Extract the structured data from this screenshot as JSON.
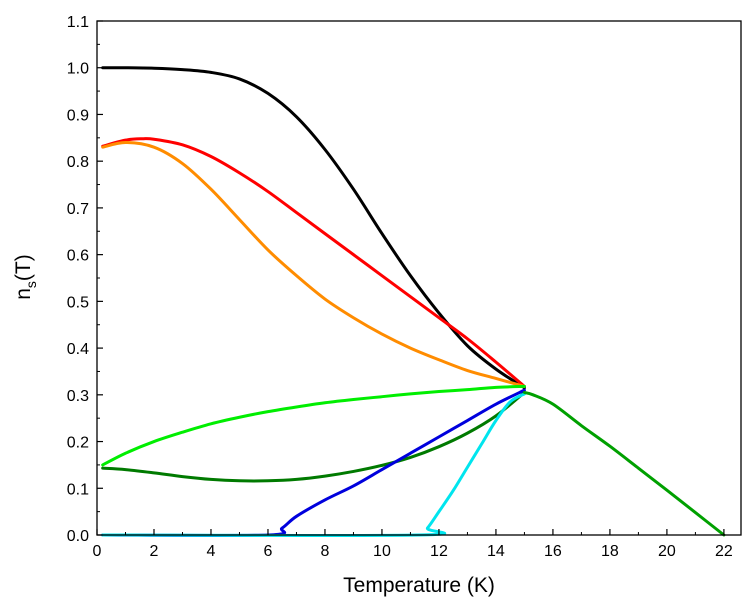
{
  "chart_data": {
    "type": "line",
    "title": "",
    "xlabel": "Temperature  (K)",
    "ylabel": {
      "base": "n",
      "subscript": "s",
      "suffix": "(T)"
    },
    "xlim": [
      0,
      22.6
    ],
    "ylim": [
      0,
      1.1
    ],
    "xticks": [
      0,
      2,
      4,
      6,
      8,
      10,
      12,
      14,
      16,
      18,
      20,
      22
    ],
    "yticks": [
      0.0,
      0.1,
      0.2,
      0.3,
      0.4,
      0.5,
      0.6,
      0.7,
      0.8,
      0.9,
      1.0,
      1.1
    ],
    "yticks_labels": [
      "0.0",
      "0.1",
      "0.2",
      "0.3",
      "0.4",
      "0.5",
      "0.6",
      "0.7",
      "0.8",
      "0.9",
      "1.0",
      "1.1"
    ],
    "xticks_labels": [
      "0",
      "2",
      "4",
      "6",
      "8",
      "10",
      "12",
      "14",
      "16",
      "18",
      "20",
      "22"
    ],
    "legend": "none",
    "grid": false,
    "series": [
      {
        "color": "#000000",
        "x": [
          0.2,
          1,
          2,
          3,
          4,
          5,
          6,
          7,
          8,
          9,
          10,
          11,
          12,
          13,
          14,
          15
        ],
        "y": [
          1.0,
          1.0,
          0.999,
          0.996,
          0.99,
          0.976,
          0.945,
          0.895,
          0.825,
          0.74,
          0.645,
          0.555,
          0.475,
          0.405,
          0.355,
          0.315
        ]
      },
      {
        "color": "#ff0000",
        "x": [
          0.2,
          1,
          1.6,
          2,
          3,
          4,
          5,
          6,
          7,
          8,
          9,
          10,
          11,
          12,
          13,
          14,
          15
        ],
        "y": [
          0.832,
          0.845,
          0.848,
          0.847,
          0.835,
          0.81,
          0.775,
          0.735,
          0.69,
          0.645,
          0.6,
          0.555,
          0.51,
          0.465,
          0.42,
          0.37,
          0.318
        ]
      },
      {
        "color": "#ff8c00",
        "x": [
          0.2,
          1,
          2,
          3,
          4,
          5,
          6,
          7,
          8,
          9,
          10,
          11,
          12,
          13,
          14,
          15
        ],
        "y": [
          0.83,
          0.84,
          0.83,
          0.795,
          0.74,
          0.675,
          0.61,
          0.555,
          0.505,
          0.465,
          0.43,
          0.4,
          0.375,
          0.352,
          0.335,
          0.318
        ]
      },
      {
        "color": "#00ee00",
        "x": [
          0.2,
          1,
          2,
          3,
          4,
          5,
          6,
          7,
          8,
          9,
          10,
          11,
          12,
          13,
          14,
          15
        ],
        "y": [
          0.15,
          0.175,
          0.2,
          0.22,
          0.238,
          0.252,
          0.264,
          0.274,
          0.283,
          0.29,
          0.296,
          0.302,
          0.307,
          0.311,
          0.316,
          0.318
        ]
      },
      {
        "color": "#007a00",
        "x": [
          0.2,
          1,
          2,
          3,
          4,
          5,
          6,
          7,
          8,
          9,
          10,
          11,
          12,
          13,
          14,
          15
        ],
        "y": [
          0.143,
          0.14,
          0.133,
          0.125,
          0.119,
          0.116,
          0.116,
          0.119,
          0.126,
          0.136,
          0.149,
          0.166,
          0.189,
          0.218,
          0.255,
          0.305
        ]
      },
      {
        "color": "#0000dd",
        "x": [
          0.2,
          6.0,
          6.5,
          7,
          8,
          9,
          10,
          11,
          12,
          13,
          14,
          15
        ],
        "y": [
          0.0,
          0.0,
          0.015,
          0.04,
          0.075,
          0.105,
          0.14,
          0.175,
          0.21,
          0.245,
          0.28,
          0.31
        ]
      },
      {
        "color": "#00e5ee",
        "x": [
          0.2,
          11.3,
          11.6,
          12,
          12.5,
          13,
          13.5,
          14,
          14.5,
          15
        ],
        "y": [
          0.0,
          0.0,
          0.015,
          0.05,
          0.095,
          0.145,
          0.195,
          0.245,
          0.285,
          0.302
        ]
      },
      {
        "color": "#00a000",
        "x": [
          15,
          15.3,
          16,
          17,
          18,
          19,
          20,
          21,
          22
        ],
        "y": [
          0.305,
          0.3,
          0.28,
          0.234,
          0.19,
          0.143,
          0.096,
          0.048,
          0.0
        ]
      }
    ]
  }
}
